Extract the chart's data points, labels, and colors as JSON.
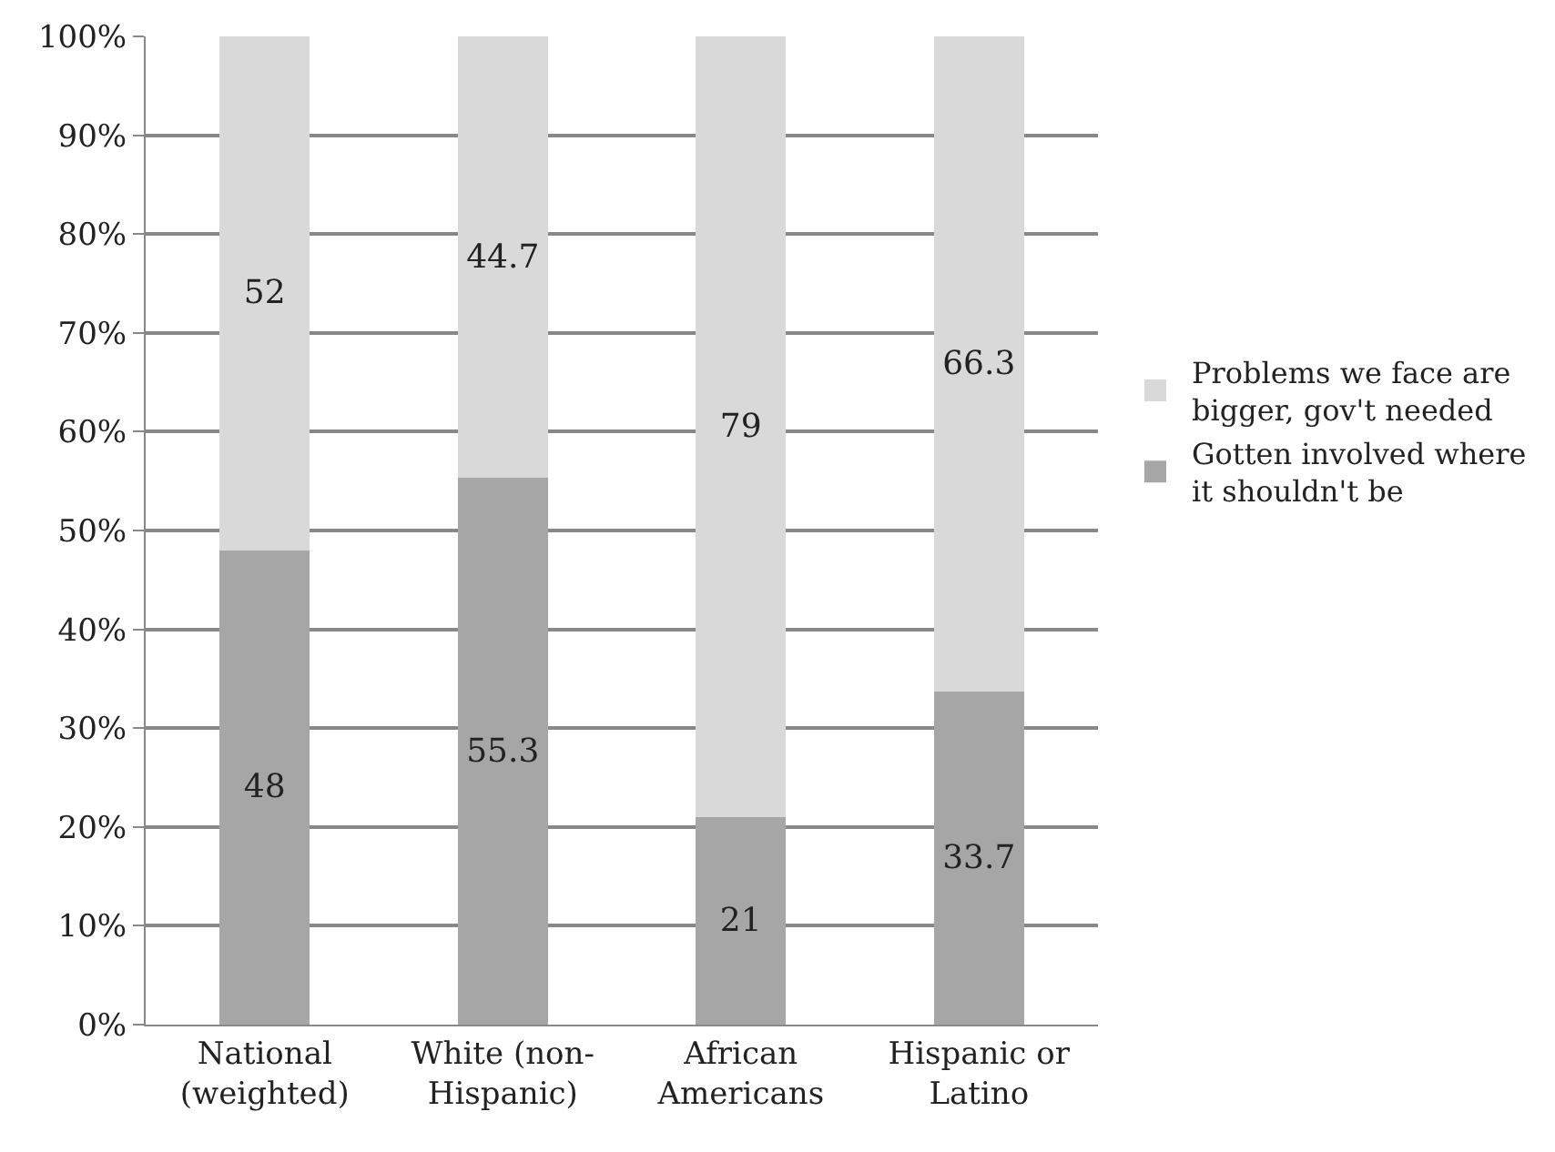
{
  "chart_data": {
    "type": "bar",
    "stacked": true,
    "categories": [
      "National (weighted)",
      "White (non-Hispanic)",
      "African Americans",
      "Hispanic or Latino"
    ],
    "series": [
      {
        "name": "Gotten involved where it shouldn't be",
        "color": "#a6a6a6",
        "values": [
          48,
          55.3,
          21,
          33.7
        ]
      },
      {
        "name": "Problems we face are bigger, gov't needed",
        "color": "#d9d9d9",
        "values": [
          52,
          44.7,
          79,
          66.3
        ]
      }
    ],
    "ylim": [
      0,
      100
    ],
    "yticks": [
      {
        "value": 0,
        "label": "0%"
      },
      {
        "value": 10,
        "label": "10%"
      },
      {
        "value": 20,
        "label": "20%"
      },
      {
        "value": 30,
        "label": "30%"
      },
      {
        "value": 40,
        "label": "40%"
      },
      {
        "value": 50,
        "label": "50%"
      },
      {
        "value": 60,
        "label": "60%"
      },
      {
        "value": 70,
        "label": "70%"
      },
      {
        "value": 80,
        "label": "80%"
      },
      {
        "value": 90,
        "label": "90%"
      },
      {
        "value": 100,
        "label": "100%"
      }
    ],
    "grid": "y",
    "legend": "right",
    "data_labels": true
  }
}
